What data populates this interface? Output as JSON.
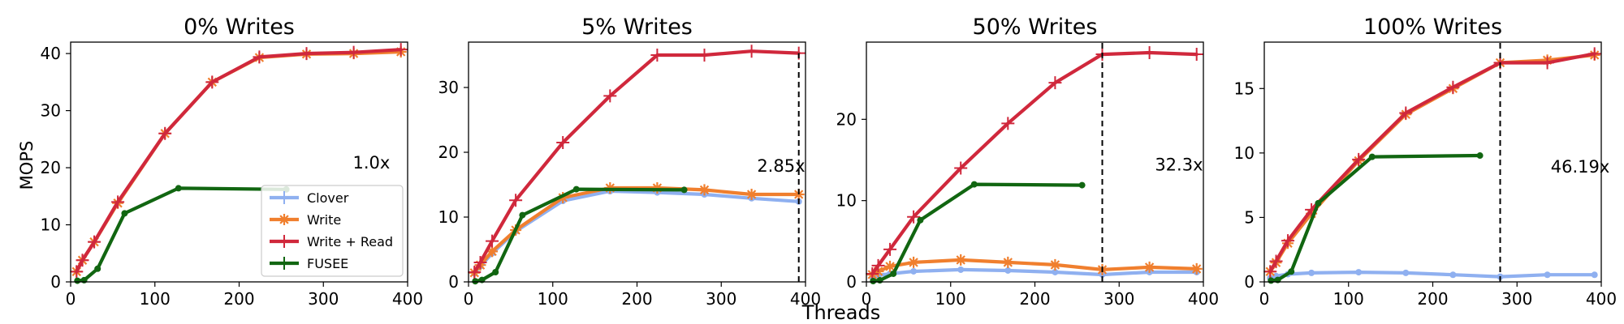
{
  "figure": {
    "xlabel": "Threads",
    "ylabel": "MOPS"
  },
  "colors": {
    "Clover": "#8fb0f0",
    "Write": "#f07f2e",
    "Write + Read": "#d0283c",
    "FUSEE": "#116611"
  },
  "legend": {
    "placement": "lower-right of first panel",
    "entries": [
      "Clover",
      "Write",
      "Write + Read",
      "FUSEE"
    ]
  },
  "chart_data": [
    {
      "type": "line",
      "title": "0% Writes",
      "xlim": [
        0,
        400
      ],
      "ylim": [
        0,
        42
      ],
      "xticks": [
        0,
        100,
        200,
        300,
        400
      ],
      "yticks": [
        0,
        10,
        20,
        30,
        40
      ],
      "annotation": {
        "text": "1.0x",
        "x": 357,
        "y": 21
      },
      "series": [
        {
          "name": "Write",
          "marker": "star",
          "x": [
            7,
            14,
            28,
            56,
            112,
            168,
            224,
            280,
            336,
            392
          ],
          "y": [
            1.8,
            3.8,
            7.0,
            13.8,
            26.0,
            35.0,
            39.3,
            39.9,
            40.0,
            40.3
          ]
        },
        {
          "name": "Write + Read",
          "marker": "plus",
          "x": [
            7,
            14,
            28,
            56,
            112,
            168,
            224,
            280,
            336,
            392
          ],
          "y": [
            1.8,
            3.8,
            7.0,
            14.0,
            26.0,
            35.0,
            39.4,
            40.0,
            40.2,
            40.7
          ]
        },
        {
          "name": "FUSEE",
          "marker": "dot",
          "x": [
            8,
            16,
            32,
            64,
            128,
            256
          ],
          "y": [
            0.2,
            0.3,
            2.3,
            12.0,
            16.4,
            16.2
          ]
        }
      ]
    },
    {
      "type": "line",
      "title": "5% Writes",
      "xlim": [
        0,
        400
      ],
      "ylim": [
        0,
        37
      ],
      "xticks": [
        0,
        100,
        200,
        300,
        400
      ],
      "yticks": [
        0,
        10,
        20,
        30
      ],
      "annotation": {
        "text": "2.85x",
        "x": 371,
        "y": 18
      },
      "dashed_x": 392,
      "series": [
        {
          "name": "Clover",
          "marker": "dot",
          "x": [
            7,
            14,
            28,
            56,
            112,
            168,
            224,
            280,
            336,
            392
          ],
          "y": [
            1.3,
            2.4,
            4.4,
            7.8,
            12.5,
            14.0,
            13.8,
            13.5,
            12.9,
            12.4
          ]
        },
        {
          "name": "Write",
          "marker": "star",
          "x": [
            7,
            14,
            28,
            56,
            112,
            168,
            224,
            280,
            336,
            392
          ],
          "y": [
            1.4,
            2.6,
            4.7,
            8.0,
            13.0,
            14.5,
            14.5,
            14.2,
            13.5,
            13.5
          ]
        },
        {
          "name": "Write + Read",
          "marker": "plus",
          "x": [
            7,
            14,
            28,
            56,
            112,
            168,
            224,
            280,
            336,
            392
          ],
          "y": [
            1.5,
            3.0,
            6.3,
            12.6,
            21.5,
            28.7,
            35.0,
            35.0,
            35.6,
            35.3
          ]
        },
        {
          "name": "FUSEE",
          "marker": "dot",
          "x": [
            8,
            16,
            32,
            64,
            128,
            256
          ],
          "y": [
            0.1,
            0.3,
            1.5,
            10.3,
            14.3,
            14.2
          ]
        }
      ]
    },
    {
      "type": "line",
      "title": "50% Writes",
      "xlim": [
        0,
        400
      ],
      "ylim": [
        0,
        29.5
      ],
      "xticks": [
        0,
        100,
        200,
        300,
        400
      ],
      "yticks": [
        0,
        10,
        20
      ],
      "annotation": {
        "text": "32.3x",
        "x": 371,
        "y": 14.5
      },
      "dashed_x": 280,
      "series": [
        {
          "name": "Clover",
          "marker": "dot",
          "x": [
            7,
            14,
            28,
            56,
            112,
            168,
            224,
            280,
            336,
            392
          ],
          "y": [
            0.6,
            0.8,
            1.0,
            1.3,
            1.5,
            1.4,
            1.2,
            0.9,
            1.2,
            1.2
          ]
        },
        {
          "name": "Write",
          "marker": "star",
          "x": [
            7,
            14,
            28,
            56,
            112,
            168,
            224,
            280,
            336,
            392
          ],
          "y": [
            0.9,
            1.3,
            1.9,
            2.4,
            2.7,
            2.4,
            2.1,
            1.5,
            1.8,
            1.6
          ]
        },
        {
          "name": "Write + Read",
          "marker": "plus",
          "x": [
            7,
            14,
            28,
            56,
            112,
            168,
            224,
            280,
            336,
            392
          ],
          "y": [
            1.0,
            2.0,
            4.0,
            8.0,
            14.0,
            19.5,
            24.5,
            28.0,
            28.2,
            28.0
          ]
        },
        {
          "name": "FUSEE",
          "marker": "dot",
          "x": [
            8,
            16,
            32,
            64,
            128,
            256
          ],
          "y": [
            0.1,
            0.2,
            1.0,
            7.6,
            12.0,
            11.9
          ]
        }
      ]
    },
    {
      "type": "line",
      "title": "100% Writes",
      "xlim": [
        0,
        400
      ],
      "ylim": [
        0,
        18.6
      ],
      "xticks": [
        0,
        100,
        200,
        300,
        400
      ],
      "yticks": [
        0,
        5,
        10,
        15
      ],
      "annotation": {
        "text": "46.19x",
        "x": 375,
        "y": 9
      },
      "dashed_x": 280,
      "series": [
        {
          "name": "Clover",
          "marker": "dot",
          "x": [
            7,
            14,
            28,
            56,
            112,
            168,
            224,
            280,
            336,
            392
          ],
          "y": [
            0.3,
            0.45,
            0.6,
            0.7,
            0.75,
            0.7,
            0.55,
            0.4,
            0.55,
            0.55
          ]
        },
        {
          "name": "Write",
          "marker": "star",
          "x": [
            7,
            14,
            28,
            56,
            112,
            168,
            224,
            280,
            336,
            392
          ],
          "y": [
            0.8,
            1.5,
            3.0,
            5.3,
            9.4,
            13.0,
            15.0,
            17.0,
            17.2,
            17.6
          ]
        },
        {
          "name": "Write + Read",
          "marker": "plus",
          "x": [
            7,
            14,
            28,
            56,
            112,
            168,
            224,
            280,
            336,
            392
          ],
          "y": [
            0.8,
            1.6,
            3.2,
            5.6,
            9.5,
            13.1,
            15.1,
            17.0,
            17.0,
            17.7
          ]
        },
        {
          "name": "FUSEE",
          "marker": "dot",
          "x": [
            8,
            16,
            32,
            64,
            128,
            256
          ],
          "y": [
            0.1,
            0.15,
            0.8,
            6.1,
            9.7,
            9.8
          ]
        }
      ]
    }
  ]
}
